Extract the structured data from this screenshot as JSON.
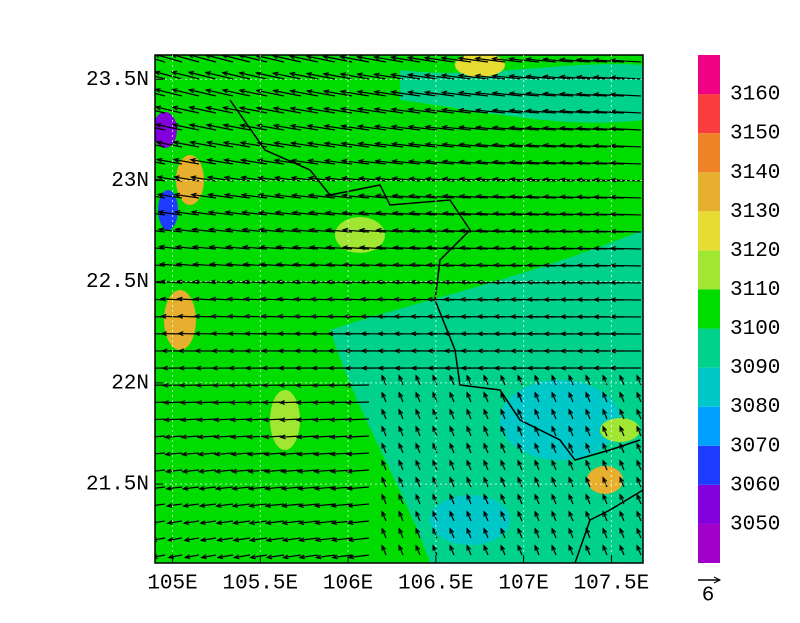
{
  "chart_data": {
    "type": "map",
    "xlim": [
      104.9,
      107.68
    ],
    "ylim": [
      21.11,
      23.62
    ],
    "xticks": [
      {
        "value": 105,
        "label": "105E"
      },
      {
        "value": 105.5,
        "label": "105.5E"
      },
      {
        "value": 106,
        "label": "106E"
      },
      {
        "value": 106.5,
        "label": "106.5E"
      },
      {
        "value": 107,
        "label": "107E"
      },
      {
        "value": 107.5,
        "label": "107.5E"
      }
    ],
    "yticks": [
      {
        "value": 21.5,
        "label": "21.5N"
      },
      {
        "value": 22,
        "label": "22N"
      },
      {
        "value": 22.5,
        "label": "22.5N"
      },
      {
        "value": 23,
        "label": "23N"
      },
      {
        "value": 23.5,
        "label": "23.5N"
      }
    ],
    "grid": true,
    "colorbar": {
      "levels": [
        3050,
        3060,
        3070,
        3080,
        3090,
        3100,
        3110,
        3120,
        3130,
        3140,
        3150,
        3160
      ],
      "colors": [
        "#a000c8",
        "#8200dc",
        "#1e3cff",
        "#00a0ff",
        "#00c8c8",
        "#00d28c",
        "#00dc00",
        "#a0e632",
        "#e6dc32",
        "#e6af2d",
        "#f08228",
        "#fa3c3c",
        "#f00082"
      ]
    },
    "reference_vector": "6"
  }
}
